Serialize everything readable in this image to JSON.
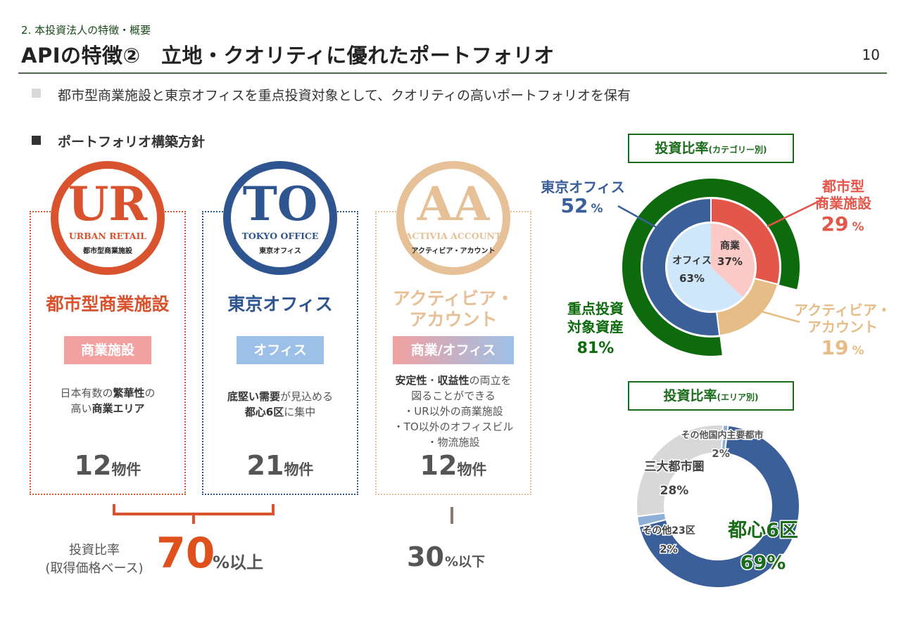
{
  "header": {
    "section": "2. 本投資法人の特徴・概要",
    "title": "APIの特徴②　立地・クオリティに優れたポートフォリオ",
    "page_number": "10"
  },
  "lead": "都市型商業施設と東京オフィスを重点投資対象として、クオリティの高いポートフォリオを保有",
  "policy": {
    "title": "ポートフォリオ構築方針",
    "cards": [
      {
        "code": "UR",
        "logo_en": "URBAN RETAIL",
        "logo_jp": "都市型商業施設",
        "title_lines": [
          "都市型商業施設"
        ],
        "tag": "商業施設",
        "desc_lines": [
          "日本有数の<b>繁華性</b>の",
          "高い<b>商業エリア</b>"
        ],
        "count": "12",
        "count_unit": "物件",
        "color": "#d9532e"
      },
      {
        "code": "TO",
        "logo_en": "TOKYO OFFICE",
        "logo_jp": "東京オフィス",
        "title_lines": [
          "東京オフィス"
        ],
        "tag": "オフィス",
        "desc_lines": [
          "<b>底堅い需要</b>が見込める",
          "<b>都心6区</b>に集中"
        ],
        "count": "21",
        "count_unit": "物件",
        "color": "#2e5590"
      },
      {
        "code": "AA",
        "logo_en": "ACTIVIA ACCOUNT",
        "logo_jp": "アクティビア・アカウント",
        "title_lines": [
          "アクティビア・",
          "アカウント"
        ],
        "tag": "商業/オフィス",
        "desc_lines": [
          "<b>安定性</b>・<b>収益性</b>の両立を",
          "図ることができる",
          "・UR以外の商業施設",
          "・TO以外のオフィスビル",
          "・物流施設"
        ],
        "count": "12",
        "count_unit": "物件",
        "color": "#e6c096"
      }
    ]
  },
  "ratio": {
    "label_lines": [
      "投資比率",
      "(取得価格ベース)"
    ],
    "ur_to_value": "70",
    "ur_to_suffix": "%以上",
    "aa_value": "30",
    "aa_suffix": "%以下"
  },
  "chart_data": [
    {
      "type": "pie",
      "title": "投資比率",
      "title_suffix": "(カテゴリー別)",
      "outer_ring": {
        "slices": [
          {
            "label_lines": [
              "東京オフィス"
            ],
            "value": 52,
            "value_text": "52",
            "unit": "%",
            "color": "#3a5f99"
          },
          {
            "label_lines": [
              "都市型",
              "商業施設"
            ],
            "value": 29,
            "value_text": "29",
            "unit": "%",
            "color": "#e3574b"
          },
          {
            "label_lines": [
              "アクティビア・",
              "アカウント"
            ],
            "value": 19,
            "value_text": "19",
            "unit": "%",
            "color": "#e6bd87"
          }
        ]
      },
      "highlight_ring": {
        "label_lines": [
          "重点投資",
          "対象資産"
        ],
        "value": 81,
        "value_text": "81%",
        "color": "#0d6b0d"
      },
      "inner_pie": {
        "slices": [
          {
            "label": "オフィス",
            "value": 63,
            "value_text": "63%",
            "color": "#cfe7fa"
          },
          {
            "label": "商業",
            "value": 37,
            "value_text": "37%",
            "color": "#fbc9c6"
          }
        ]
      }
    },
    {
      "type": "pie",
      "title": "投資比率",
      "title_suffix": "(エリア別)",
      "slices": [
        {
          "label": "都心6区",
          "value": 69,
          "value_text": "69%",
          "color": "#3a5f99"
        },
        {
          "label": "その他23区",
          "value": 2,
          "value_text": "2%",
          "color": "#8fb0d6"
        },
        {
          "label": "三大都市圏",
          "value": 28,
          "value_text": "28%",
          "color": "#d8d8d8"
        },
        {
          "label": "その他国内主要都市",
          "value": 2,
          "value_text": "2%",
          "color": "#8fb0d6"
        }
      ]
    }
  ]
}
